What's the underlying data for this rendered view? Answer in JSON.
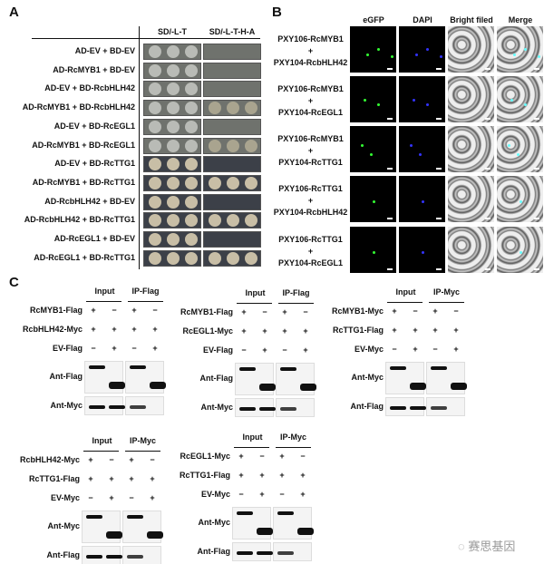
{
  "panelA": {
    "label": "A",
    "columns": [
      "SD/-L-T",
      "SD/-L-T-H-A"
    ],
    "rows": [
      {
        "label": "AD-EV + BD-EV",
        "growth_selective": false
      },
      {
        "label": "AD-RcMYB1 + BD-EV",
        "growth_selective": false
      },
      {
        "label": "AD-EV + BD-RcbHLH42",
        "growth_selective": false
      },
      {
        "label": "AD-RcMYB1 + BD-RcbHLH42",
        "growth_selective": true
      },
      {
        "label": "AD-EV + BD-RcEGL1",
        "growth_selective": false
      },
      {
        "label": "AD-RcMYB1 + BD-RcEGL1",
        "growth_selective": true
      },
      {
        "label": "AD-EV + BD-RcTTG1",
        "growth_selective": false
      },
      {
        "label": "AD-RcMYB1 + BD-RcTTG1",
        "growth_selective": true
      },
      {
        "label": "AD-RcbHLH42 + BD-EV",
        "growth_selective": false
      },
      {
        "label": "AD-RcbHLH42 + BD-RcTTG1",
        "growth_selective": true
      },
      {
        "label": "AD-RcEGL1 + BD-EV",
        "growth_selective": false
      },
      {
        "label": "AD-RcEGL1 + BD-RcTTG1",
        "growth_selective": true
      }
    ]
  },
  "panelB": {
    "label": "B",
    "columns": [
      "eGFP",
      "DAPI",
      "Bright filed",
      "Merge"
    ],
    "rows": [
      {
        "line1": "PXY106-RcMYB1",
        "plus": "+",
        "line2": "PXY104-RcbHLH42"
      },
      {
        "line1": "PXY106-RcMYB1",
        "plus": "+",
        "line2": "PXY104-RcEGL1"
      },
      {
        "line1": "PXY106-RcMYB1",
        "plus": "+",
        "line2": "PXY104-RcTTG1"
      },
      {
        "line1": "PXY106-RcTTG1",
        "plus": "+",
        "line2": "PXY104-RcbHLH42"
      },
      {
        "line1": "PXY106-RcTTG1",
        "plus": "+",
        "line2": "PXY104-RcEGL1"
      }
    ]
  },
  "panelC": {
    "label": "C",
    "blots": [
      {
        "headers": [
          "Input",
          "IP-Flag"
        ],
        "rows": [
          {
            "label": "RcMYB1-Flag",
            "values": [
              "+",
              "−",
              "+",
              "−"
            ]
          },
          {
            "label": "RcbHLH42-Myc",
            "values": [
              "+",
              "+",
              "+",
              "+"
            ]
          },
          {
            "label": "EV-Flag",
            "values": [
              "−",
              "+",
              "−",
              "+"
            ]
          }
        ],
        "probes": [
          {
            "label": "Ant-Flag",
            "bands": [
              "upper",
              "lower",
              "upper",
              "lower"
            ]
          },
          {
            "label": "Ant-Myc",
            "bands": [
              "band",
              "band",
              "band",
              null
            ]
          }
        ]
      },
      {
        "headers": [
          "Input",
          "IP-Flag"
        ],
        "rows": [
          {
            "label": "RcMYB1-Flag",
            "values": [
              "+",
              "−",
              "+",
              "−"
            ]
          },
          {
            "label": "RcEGL1-Myc",
            "values": [
              "+",
              "+",
              "+",
              "+"
            ]
          },
          {
            "label": "EV-Flag",
            "values": [
              "−",
              "+",
              "−",
              "+"
            ]
          }
        ],
        "probes": [
          {
            "label": "Ant-Flag",
            "bands": [
              "upper",
              "lower",
              "upper",
              "lower"
            ]
          },
          {
            "label": "Ant-Myc",
            "bands": [
              "band",
              "band",
              "band",
              null
            ]
          }
        ]
      },
      {
        "headers": [
          "Input",
          "IP-Myc"
        ],
        "rows": [
          {
            "label": "RcMYB1-Myc",
            "values": [
              "+",
              "−",
              "+",
              "−"
            ]
          },
          {
            "label": "RcTTG1-Flag",
            "values": [
              "+",
              "+",
              "+",
              "+"
            ]
          },
          {
            "label": "EV-Myc",
            "values": [
              "−",
              "+",
              "−",
              "+"
            ]
          }
        ],
        "probes": [
          {
            "label": "Ant-Myc",
            "bands": [
              "upper",
              "lower",
              "upper",
              "lower"
            ]
          },
          {
            "label": "Ant-Flag",
            "bands": [
              "band",
              "band",
              "band",
              null
            ]
          }
        ]
      },
      {
        "headers": [
          "Input",
          "IP-Myc"
        ],
        "rows": [
          {
            "label": "RcbHLH42-Myc",
            "values": [
              "+",
              "−",
              "+",
              "−"
            ]
          },
          {
            "label": "RcTTG1-Flag",
            "values": [
              "+",
              "+",
              "+",
              "+"
            ]
          },
          {
            "label": "EV-Myc",
            "values": [
              "−",
              "+",
              "−",
              "+"
            ]
          }
        ],
        "probes": [
          {
            "label": "Ant-Myc",
            "bands": [
              "upper",
              "lower",
              "upper",
              "lower"
            ]
          },
          {
            "label": "Ant-Flag",
            "bands": [
              "band",
              "band",
              "band",
              null
            ]
          }
        ]
      },
      {
        "headers": [
          "Input",
          "IP-Myc"
        ],
        "rows": [
          {
            "label": "RcEGL1-Myc",
            "values": [
              "+",
              "−",
              "+",
              "−"
            ]
          },
          {
            "label": "RcTTG1-Flag",
            "values": [
              "+",
              "+",
              "+",
              "+"
            ]
          },
          {
            "label": "EV-Myc",
            "values": [
              "−",
              "+",
              "−",
              "+"
            ]
          }
        ],
        "probes": [
          {
            "label": "Ant-Myc",
            "bands": [
              "upper",
              "lower",
              "upper",
              "lower"
            ]
          },
          {
            "label": "Ant-Flag",
            "bands": [
              "band",
              "band",
              "band",
              null
            ]
          }
        ]
      }
    ]
  },
  "watermark": "赛思基因"
}
